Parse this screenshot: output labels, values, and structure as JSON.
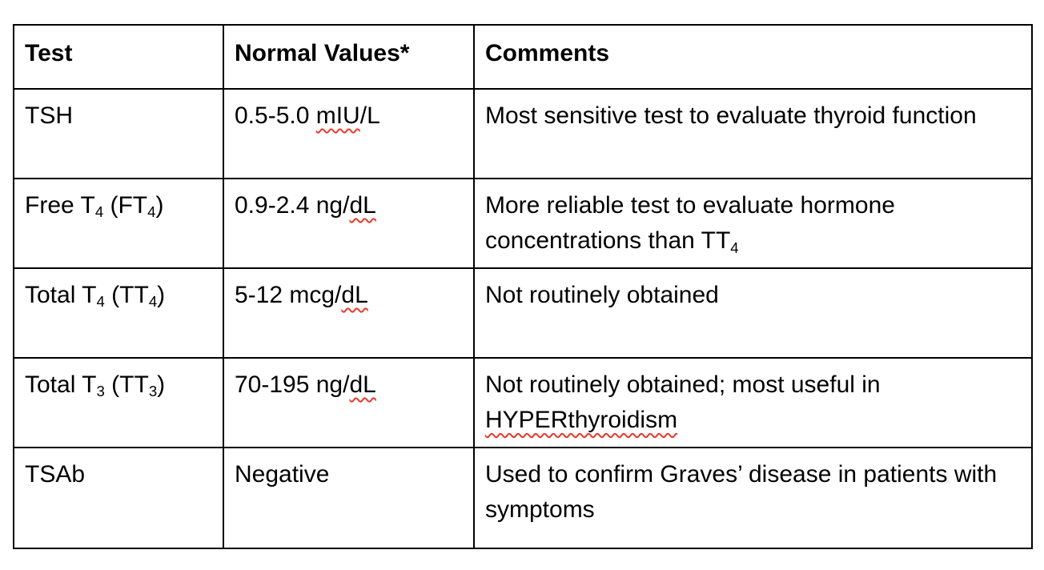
{
  "colors": {
    "background": "#ffffff",
    "text": "#000000",
    "border": "#000000",
    "squiggle_red": "#e8392d"
  },
  "table": {
    "columns": [
      {
        "label": "Test"
      },
      {
        "label": "Normal Values*"
      },
      {
        "label": "Comments"
      }
    ],
    "rows": [
      {
        "test": [
          {
            "text": "TSH"
          }
        ],
        "normal": [
          {
            "text": "0.5-5.0 "
          },
          {
            "text": "mIU",
            "squiggle": true
          },
          {
            "text": "/L"
          }
        ],
        "comments": [
          {
            "text": "Most sensitive test to evaluate thyroid function"
          }
        ]
      },
      {
        "test": [
          {
            "text": "Free T"
          },
          {
            "text": "4",
            "sub": true
          },
          {
            "text": " (FT"
          },
          {
            "text": "4",
            "sub": true
          },
          {
            "text": ")"
          }
        ],
        "normal": [
          {
            "text": "0.9-2.4 ng/"
          },
          {
            "text": "dL",
            "squiggle": true
          }
        ],
        "comments": [
          {
            "text": "More reliable test to evaluate hormone concentrations than TT"
          },
          {
            "text": "4",
            "sub": true
          }
        ]
      },
      {
        "test": [
          {
            "text": "Total T"
          },
          {
            "text": "4",
            "sub": true
          },
          {
            "text": " (TT"
          },
          {
            "text": "4",
            "sub": true
          },
          {
            "text": ")"
          }
        ],
        "normal": [
          {
            "text": "5-12 mcg/"
          },
          {
            "text": "dL",
            "squiggle": true
          }
        ],
        "comments": [
          {
            "text": "Not routinely obtained"
          }
        ]
      },
      {
        "test": [
          {
            "text": "Total T"
          },
          {
            "text": "3",
            "sub": true
          },
          {
            "text": " (TT"
          },
          {
            "text": "3",
            "sub": true
          },
          {
            "text": ")"
          }
        ],
        "normal": [
          {
            "text": "70-195 ng/"
          },
          {
            "text": "dL",
            "squiggle": true
          }
        ],
        "comments": [
          {
            "text": "Not routinely obtained; most useful in "
          },
          {
            "text": "HYPERthyroidism",
            "squiggle": true
          }
        ]
      },
      {
        "test": [
          {
            "text": "TSAb"
          }
        ],
        "normal": [
          {
            "text": "Negative"
          }
        ],
        "comments": [
          {
            "text": "Used to confirm Graves’ disease in patients with symptoms"
          }
        ]
      }
    ]
  }
}
